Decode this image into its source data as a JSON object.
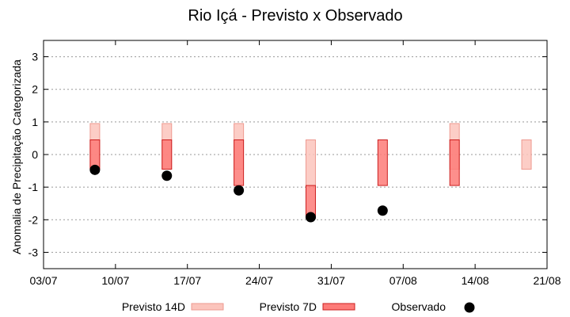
{
  "chart_data": {
    "type": "bar",
    "title": "Rio Içá - Previsto x Observado",
    "xlabel": "",
    "ylabel": "Anomalia de Precipitação Categorizada",
    "ylim": [
      -3.5,
      3.5
    ],
    "yticks": [
      -3,
      -2,
      -1,
      0,
      1,
      2,
      3
    ],
    "xlim": [
      "2024-07-03",
      "2024-08-21"
    ],
    "xticks": [
      "03/07",
      "10/07",
      "17/07",
      "24/07",
      "31/07",
      "07/08",
      "14/08",
      "21/08"
    ],
    "grid": true,
    "legend_position": "bottom",
    "colors": {
      "previsto14d_fill": "#fbc4bc",
      "previsto14d_stroke": "#ee9a90",
      "previsto7d_fill": "#fd7b78",
      "previsto7d_stroke": "#cc1f1f",
      "observado": "#000000",
      "grid": "#999999"
    },
    "series": [
      {
        "name": "Previsto 14D",
        "kind": "range",
        "points": [
          {
            "x": "2024-07-08",
            "low": -0.45,
            "high": 0.95
          },
          {
            "x": "2024-07-15",
            "low": -0.45,
            "high": 0.95
          },
          {
            "x": "2024-07-22",
            "low": -0.45,
            "high": 0.95
          },
          {
            "x": "2024-07-29",
            "low": -0.95,
            "high": 0.45
          },
          {
            "x": "2024-08-12",
            "low": -0.45,
            "high": 0.95
          },
          {
            "x": "2024-08-19",
            "low": -0.45,
            "high": 0.45
          }
        ]
      },
      {
        "name": "Previsto 7D",
        "kind": "range",
        "points": [
          {
            "x": "2024-07-08",
            "low": -0.45,
            "high": 0.45
          },
          {
            "x": "2024-07-15",
            "low": -0.45,
            "high": 0.45
          },
          {
            "x": "2024-07-22",
            "low": -0.95,
            "high": 0.45
          },
          {
            "x": "2024-07-29",
            "low": -1.95,
            "high": -0.95
          },
          {
            "x": "2024-08-05",
            "low": -0.95,
            "high": 0.45
          },
          {
            "x": "2024-08-12",
            "low": -0.95,
            "high": 0.45
          }
        ]
      },
      {
        "name": "Observado",
        "kind": "scatter",
        "points": [
          {
            "x": "2024-07-08",
            "y": -0.47
          },
          {
            "x": "2024-07-15",
            "y": -0.65
          },
          {
            "x": "2024-07-22",
            "y": -1.1
          },
          {
            "x": "2024-07-29",
            "y": -1.92
          },
          {
            "x": "2024-08-05",
            "y": -1.72
          }
        ]
      }
    ]
  }
}
